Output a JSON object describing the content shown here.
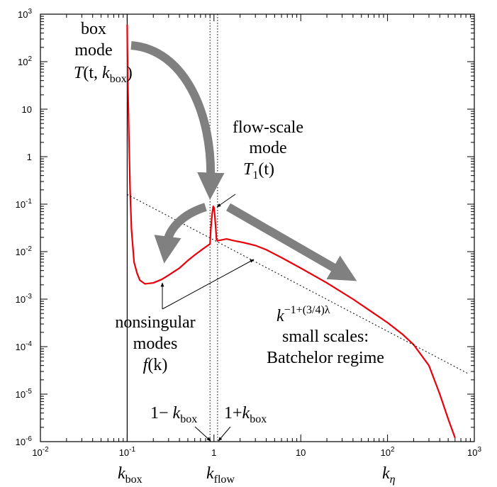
{
  "chart_data": {
    "type": "line",
    "title": "",
    "xlabel": "",
    "ylabel": "",
    "xscale": "log",
    "yscale": "log",
    "xlim": [
      0.01,
      1000
    ],
    "ylim": [
      1e-06,
      1000
    ],
    "grid": false,
    "x_ticks": [
      {
        "value": 0.01,
        "base": "10",
        "exp": "-2"
      },
      {
        "value": 0.1,
        "base": "10",
        "exp": "-1"
      },
      {
        "value": 1,
        "base": "1",
        "exp": ""
      },
      {
        "value": 10,
        "base": "10",
        "exp": ""
      },
      {
        "value": 100,
        "base": "10",
        "exp": "2"
      },
      {
        "value": 1000,
        "base": "10",
        "exp": "3"
      }
    ],
    "y_ticks": [
      {
        "value": 1000,
        "base": "10",
        "exp": "3"
      },
      {
        "value": 100,
        "base": "10",
        "exp": "2"
      },
      {
        "value": 10,
        "base": "10",
        "exp": ""
      },
      {
        "value": 1,
        "base": "1",
        "exp": ""
      },
      {
        "value": 0.1,
        "base": "10",
        "exp": "-1"
      },
      {
        "value": 0.01,
        "base": "10",
        "exp": "-2"
      },
      {
        "value": 0.001,
        "base": "10",
        "exp": "-3"
      },
      {
        "value": 0.0001,
        "base": "10",
        "exp": "-4"
      },
      {
        "value": 1e-05,
        "base": "10",
        "exp": "-5"
      },
      {
        "value": 1e-06,
        "base": "10",
        "exp": "-6"
      }
    ],
    "series": [
      {
        "color": "#e8000b",
        "points": [
          [
            0.1,
            600
          ],
          [
            0.1005,
            200
          ],
          [
            0.102,
            30
          ],
          [
            0.105,
            2
          ],
          [
            0.108,
            0.2
          ],
          [
            0.112,
            0.03
          ],
          [
            0.12,
            0.006
          ],
          [
            0.13,
            0.0035
          ],
          [
            0.14,
            0.0025
          ],
          [
            0.16,
            0.0021
          ],
          [
            0.2,
            0.0022
          ],
          [
            0.25,
            0.0026
          ],
          [
            0.3,
            0.0032
          ],
          [
            0.4,
            0.0045
          ],
          [
            0.5,
            0.0065
          ],
          [
            0.6,
            0.0085
          ],
          [
            0.7,
            0.0105
          ],
          [
            0.8,
            0.0125
          ],
          [
            0.9,
            0.0145
          ],
          [
            0.92,
            0.03
          ],
          [
            0.95,
            0.06
          ],
          [
            0.98,
            0.09
          ],
          [
            1.0,
            0.085
          ],
          [
            1.02,
            0.06
          ],
          [
            1.05,
            0.03
          ],
          [
            1.07,
            0.018
          ],
          [
            1.1,
            0.017
          ],
          [
            1.2,
            0.0175
          ],
          [
            1.4,
            0.0185
          ],
          [
            1.7,
            0.017
          ],
          [
            2.2,
            0.0155
          ],
          [
            3.0,
            0.0135
          ],
          [
            4.0,
            0.011
          ],
          [
            6.0,
            0.0075
          ],
          [
            10,
            0.0045
          ],
          [
            20,
            0.0022
          ],
          [
            40,
            0.001
          ],
          [
            70,
            0.0005
          ],
          [
            100,
            0.00032
          ],
          [
            150,
            0.00018
          ],
          [
            200,
            0.00011
          ],
          [
            300,
            4e-05
          ],
          [
            400,
            1e-05
          ],
          [
            500,
            3e-06
          ],
          [
            600,
            1.2e-06
          ]
        ]
      },
      {
        "color": "#000000",
        "dashed": true,
        "points": [
          [
            0.1,
            0.16
          ],
          [
            850,
            2.7e-05
          ]
        ]
      }
    ],
    "vlines": [
      {
        "x": 0.1,
        "style": "solid"
      },
      {
        "x": 0.9,
        "style": "dotted"
      },
      {
        "x": 1.1,
        "style": "dotted"
      }
    ],
    "annotations": {
      "box_mode": {
        "line1": "box",
        "line2": "mode",
        "T": "T",
        "args": "(t, ",
        "k": "k",
        "sub": "box",
        "close": ")"
      },
      "flow_scale": {
        "line1": "flow-scale",
        "line2": "mode",
        "T": "T",
        "sub": "1",
        "args": "(t)"
      },
      "nonsingular": {
        "line1": "nonsingular",
        "line2": "modes",
        "f": "f",
        "args": "(k)"
      },
      "power_law": {
        "k": "k",
        "exp": "−1+(3/4)λ"
      },
      "small_scales": {
        "line1": "small scales:",
        "line2": "Batchelor regime"
      },
      "one_minus": {
        "text": "1− ",
        "k": "k",
        "sub": "box"
      },
      "one_plus": {
        "text": "1+",
        "k": "k",
        "sub": "box"
      }
    },
    "bottom_labels": [
      {
        "k": "k",
        "sub": "box"
      },
      {
        "k": "k",
        "sub": "flow"
      },
      {
        "k": "k",
        "sub": "η"
      }
    ],
    "arrow_color": "#808080"
  }
}
